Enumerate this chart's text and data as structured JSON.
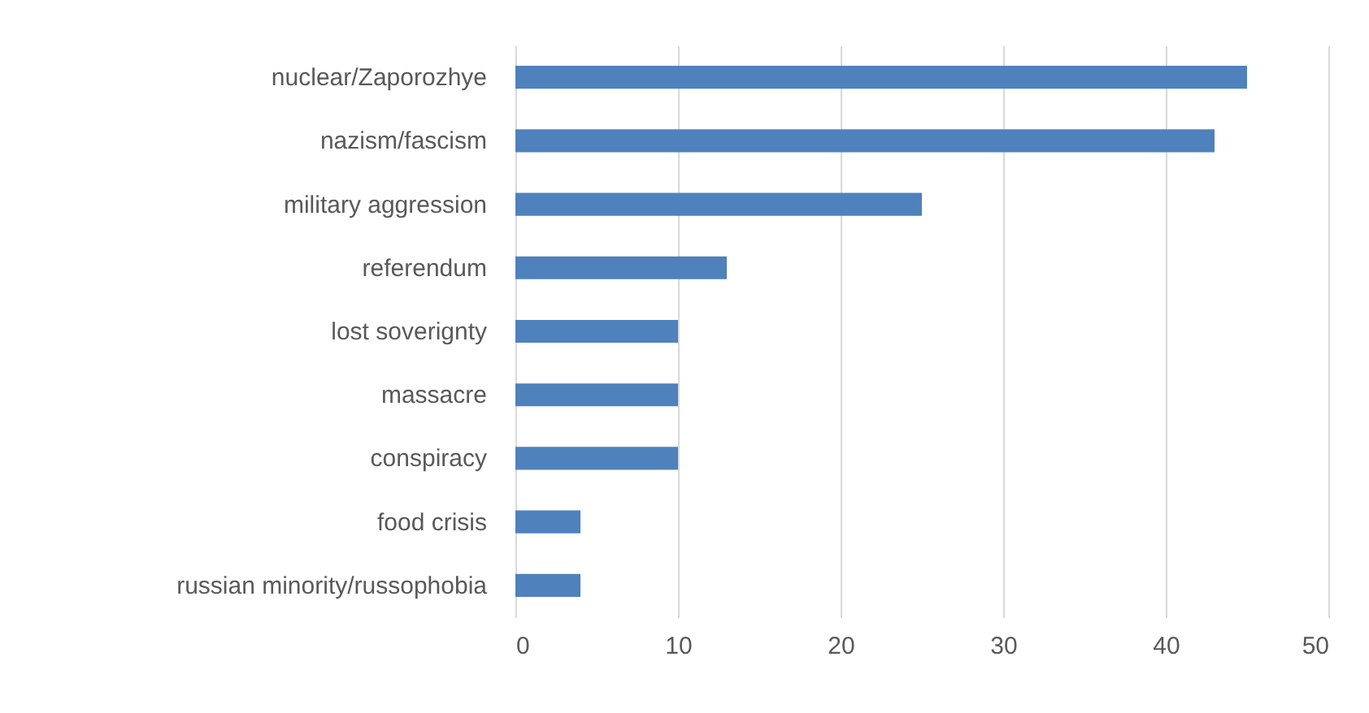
{
  "chart_data": {
    "type": "bar",
    "orientation": "horizontal",
    "categories": [
      "nuclear/Zaporozhye",
      "nazism/fascism",
      "military aggression",
      "referendum",
      "lost soverignty",
      "massacre",
      "conspiracy",
      "food crisis",
      "russian minority/russophobia"
    ],
    "values": [
      45,
      43,
      25,
      13,
      10,
      10,
      10,
      4,
      4
    ],
    "color": "#4f81bd",
    "xlim": [
      0,
      50
    ],
    "xticks": [
      0,
      10,
      20,
      30,
      40,
      50
    ],
    "grid": "x"
  }
}
